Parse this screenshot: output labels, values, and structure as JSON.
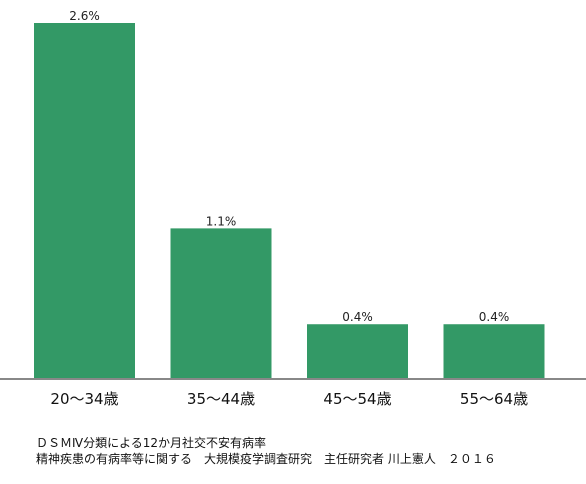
{
  "chart_data": {
    "type": "bar",
    "categories": [
      "20～34歳",
      "35～44歳",
      "45～54歳",
      "55～64歳"
    ],
    "values": [
      2.6,
      1.1,
      0.4,
      0.4
    ],
    "data_labels": [
      "2.6%",
      "1.1%",
      "0.4%",
      "0.4%"
    ],
    "ylim": [
      0,
      2.6
    ],
    "grid": false,
    "bar_color": "#339966",
    "axis_color": "#888888"
  },
  "source": {
    "line1": "ＤＳＭⅣ分類による12か月社交不安有病率",
    "line2": "精神疾患の有病率等に関する　大規模疫学調査研究　主任研究者 川上憲人　２０１６"
  }
}
